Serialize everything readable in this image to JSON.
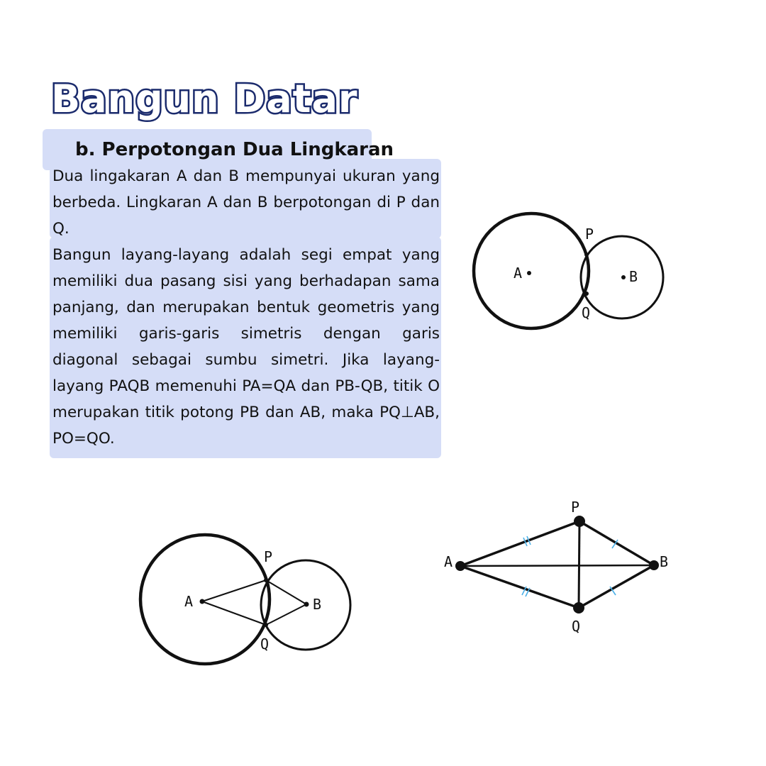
{
  "title": "Bangun Datar",
  "subtitle": "b. Perpotongan Dua Lingkaran",
  "paragraph1": "Dua lingakaran A dan B mempunyai ukuran yang berbeda. Lingkaran A dan B berpotongan di P dan Q.",
  "paragraph2": "Bangun layang-layang adalah segi empat yang memiliki dua pasang sisi yang berhadapan sama panjang, dan merupakan bentuk geometris yang memiliki garis-garis simetris dengan garis diagonal sebagai sumbu simetri. Jika layang-layang PAQB memenuhi PA=QA dan PB-QB, titik O merupakan titik potong PB dan AB, maka PQ⊥AB, PO=QO.",
  "figure1": {
    "labels": {
      "A": "A",
      "B": "B",
      "P": "P",
      "Q": "Q"
    }
  },
  "figure2": {
    "labels": {
      "A": "A",
      "B": "B",
      "P": "P",
      "Q": "Q"
    }
  },
  "figure3": {
    "labels": {
      "A": "A",
      "B": "B",
      "P": "P",
      "Q": "Q"
    }
  },
  "colors": {
    "title_stroke": "#1a2a6c",
    "highlight": "#d5ddf7",
    "tick_marks": "#4ab0e8"
  }
}
